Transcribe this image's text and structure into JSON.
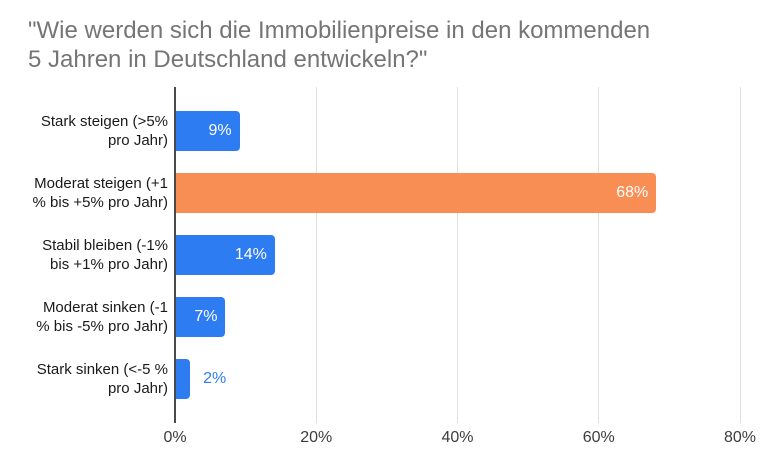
{
  "chart_data": {
    "type": "bar",
    "orientation": "horizontal",
    "title": "\"Wie werden sich die Immobilienpreise in den kommenden 5 Jahren in Deutschland entwickeln?\"",
    "title_lines": [
      "\"Wie werden sich die Immobilienpreise in den kommenden",
      "5 Jahren in Deutschland entwickeln?\""
    ],
    "x_axis": {
      "min": 0,
      "max": 80,
      "grid": true,
      "ticks": [
        {
          "value": 0,
          "label": "0%"
        },
        {
          "value": 20,
          "label": "20%"
        },
        {
          "value": 40,
          "label": "40%"
        },
        {
          "value": 60,
          "label": "60%"
        },
        {
          "value": 80,
          "label": "80%"
        }
      ]
    },
    "bars": [
      {
        "category": "Stark steigen (>5% pro Jahr)",
        "category_lines": [
          "Stark steigen (>5%",
          "pro Jahr)"
        ],
        "value": 9,
        "value_label": "9%",
        "color": "#2e7cf2",
        "label_inside": true
      },
      {
        "category": "Moderat steigen (+1 % bis +5% pro Jahr)",
        "category_lines": [
          "Moderat steigen (+1",
          "% bis +5% pro Jahr)"
        ],
        "value": 68,
        "value_label": "68%",
        "color": "#f98e54",
        "label_inside": true
      },
      {
        "category": "Stabil bleiben (-1% bis +1% pro Jahr)",
        "category_lines": [
          "Stabil bleiben (-1%",
          "bis +1% pro Jahr)"
        ],
        "value": 14,
        "value_label": "14%",
        "color": "#2e7cf2",
        "label_inside": true
      },
      {
        "category": "Moderat sinken (-1 % bis -5% pro Jahr)",
        "category_lines": [
          "Moderat sinken (-1",
          "% bis -5% pro Jahr)"
        ],
        "value": 7,
        "value_label": "7%",
        "color": "#2e7cf2",
        "label_inside": true
      },
      {
        "category": "Stark sinken (<-5 % pro Jahr)",
        "category_lines": [
          "Stark sinken (<-5 %",
          "pro Jahr)"
        ],
        "value": 2,
        "value_label": "2%",
        "color": "#2e7cf2",
        "label_inside": false
      }
    ],
    "colors": {
      "bar_blue": "#2e7cf2",
      "bar_orange": "#f98e54",
      "title_text": "#757575",
      "category_text": "#1a1a1a",
      "tick_text": "#3c3c3c",
      "value_label_inside": "#ffffff",
      "value_label_outside": "#2e7cf2",
      "axis_line": "#4a4a4a",
      "gridline": "#e0e0e0",
      "background": "#ffffff"
    }
  }
}
